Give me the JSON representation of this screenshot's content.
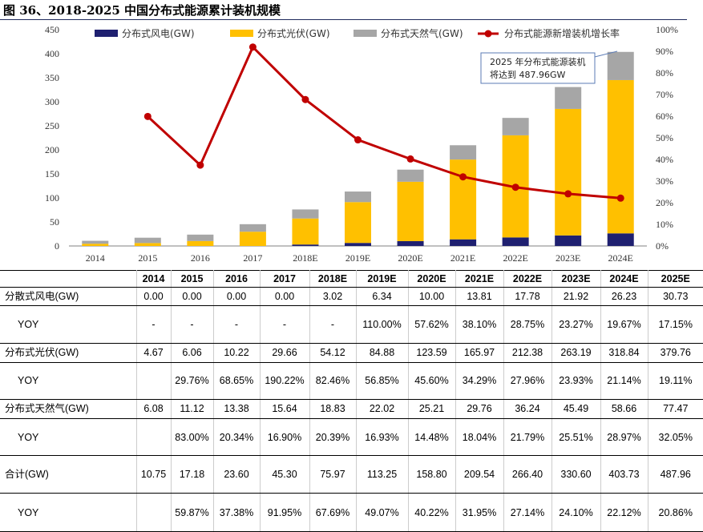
{
  "title": "图 36、2018-2025 中国分布式能源累计装机规模",
  "chart_data": {
    "type": "bar",
    "stacked": true,
    "categories": [
      "2014",
      "2015",
      "2016",
      "2017",
      "2018E",
      "2019E",
      "2020E",
      "2021E",
      "2022E",
      "2023E",
      "2024E"
    ],
    "series": [
      {
        "name": "分布式风电(GW)",
        "color": "#1f2070",
        "values": [
          0,
          0,
          0,
          0,
          3.02,
          6.34,
          10.0,
          13.81,
          17.78,
          21.92,
          26.23
        ]
      },
      {
        "name": "分布式光伏(GW)",
        "color": "#ffc000",
        "values": [
          4.67,
          6.06,
          10.22,
          29.66,
          54.12,
          84.88,
          123.59,
          165.97,
          212.38,
          263.19,
          318.84
        ]
      },
      {
        "name": "分布式天然气(GW)",
        "color": "#a6a6a6",
        "values": [
          6.08,
          11.12,
          13.38,
          15.64,
          18.83,
          22.02,
          25.21,
          29.76,
          36.24,
          45.49,
          58.66
        ]
      }
    ],
    "line_series": {
      "name": "分布式能源新增装机增长率",
      "color": "#c00000",
      "values": [
        null,
        59.87,
        37.38,
        91.95,
        67.69,
        49.07,
        40.22,
        31.95,
        27.14,
        24.1,
        22.12
      ]
    },
    "ylim": [
      0,
      450
    ],
    "y_ticks": [
      0,
      50,
      100,
      150,
      200,
      250,
      300,
      350,
      400,
      450
    ],
    "y2lim": [
      0,
      100
    ],
    "y2_ticks": [
      "0%",
      "10%",
      "20%",
      "30%",
      "40%",
      "50%",
      "60%",
      "70%",
      "80%",
      "90%",
      "100%"
    ],
    "legend_position": "top",
    "annotation": [
      "2025 年分布式能源装机",
      "将达到 487.96GW"
    ]
  },
  "table": {
    "columns": [
      "2014",
      "2015",
      "2016",
      "2017",
      "2018E",
      "2019E",
      "2020E",
      "2021E",
      "2022E",
      "2023E",
      "2024E",
      "2025E"
    ],
    "rows": [
      {
        "label": "分散式风电(GW)",
        "cells": [
          "0.00",
          "0.00",
          "0.00",
          "0.00",
          "3.02",
          "6.34",
          "10.00",
          "13.81",
          "17.78",
          "21.92",
          "26.23",
          "30.73"
        ]
      },
      {
        "label": "YOY",
        "cells": [
          "-",
          "-",
          "-",
          "-",
          "-",
          "110.00%",
          "57.62%",
          "38.10%",
          "28.75%",
          "23.27%",
          "19.67%",
          "17.15%"
        ]
      },
      {
        "label": "分布式光伏(GW)",
        "cells": [
          "4.67",
          "6.06",
          "10.22",
          "29.66",
          "54.12",
          "84.88",
          "123.59",
          "165.97",
          "212.38",
          "263.19",
          "318.84",
          "379.76"
        ]
      },
      {
        "label": "YOY",
        "cells": [
          "",
          "29.76%",
          "68.65%",
          "190.22%",
          "82.46%",
          "56.85%",
          "45.60%",
          "34.29%",
          "27.96%",
          "23.93%",
          "21.14%",
          "19.11%"
        ]
      },
      {
        "label": "分布式天然气(GW)",
        "cells": [
          "6.08",
          "11.12",
          "13.38",
          "15.64",
          "18.83",
          "22.02",
          "25.21",
          "29.76",
          "36.24",
          "45.49",
          "58.66",
          "77.47"
        ]
      },
      {
        "label": "YOY",
        "cells": [
          "",
          "83.00%",
          "20.34%",
          "16.90%",
          "20.39%",
          "16.93%",
          "14.48%",
          "18.04%",
          "21.79%",
          "25.51%",
          "28.97%",
          "32.05%"
        ]
      },
      {
        "label": "合计(GW)",
        "cells": [
          "10.75",
          "17.18",
          "23.60",
          "45.30",
          "75.97",
          "113.25",
          "158.80",
          "209.54",
          "266.40",
          "330.60",
          "403.73",
          "487.96"
        ]
      },
      {
        "label": "YOY",
        "cells": [
          "",
          "59.87%",
          "37.38%",
          "91.95%",
          "67.69%",
          "49.07%",
          "40.22%",
          "31.95%",
          "27.14%",
          "24.10%",
          "22.12%",
          "20.86%"
        ]
      }
    ]
  }
}
